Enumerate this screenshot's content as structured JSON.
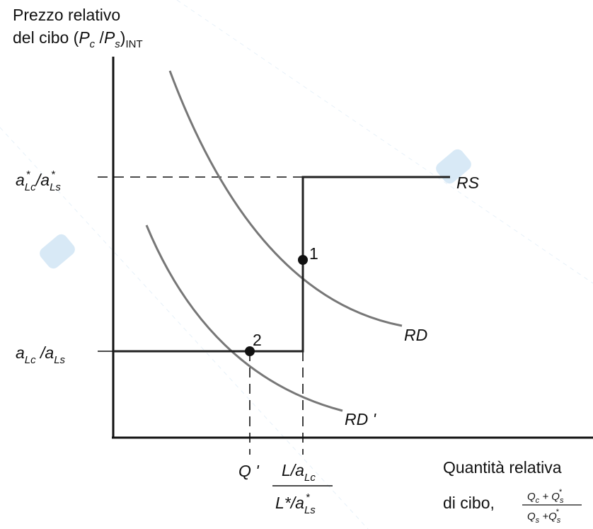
{
  "y_axis_label": {
    "line1": "Prezzo relativo",
    "line2_prefix": "del cibo (",
    "pc": "P",
    "pc_sub": "c",
    "slash": " /",
    "ps": "P",
    "ps_sub": "s",
    "close": ")",
    "int_sub": "INT"
  },
  "tick_upper": {
    "a": "a",
    "sub1": "Lc",
    "sup1": "*",
    "slash": " /a",
    "sub2": "Ls",
    "sup2": "*"
  },
  "tick_lower": {
    "a": "a",
    "sub1": "Lc",
    "slash": " /a",
    "sub2": "Ls"
  },
  "x_axis_label": {
    "line1": "Quantità relativa",
    "line2": "di cibo,",
    "num": "Q",
    "num_sub1": "c",
    "plus": " + Q",
    "num_sub2": "s",
    "num_sup2": "*",
    "den": "Q",
    "den_sub1": "s",
    "den_plus": " +Q",
    "den_sub2": "s",
    "den_sup2": "*"
  },
  "x_tick_q": "Q '",
  "x_tick_frac": {
    "num": "L/a",
    "num_sub": "Lc",
    "den": "L*/a",
    "den_sub": "Ls",
    "den_sup": "*"
  },
  "curve_labels": {
    "rs": "RS",
    "rd": "RD",
    "rd_prime": "RD '"
  },
  "point_labels": {
    "p1": "1",
    "p2": "2"
  },
  "colors": {
    "axis": "#111111",
    "supply": "#222222",
    "demand": "#777777",
    "watermark": "#8fbfe6"
  }
}
